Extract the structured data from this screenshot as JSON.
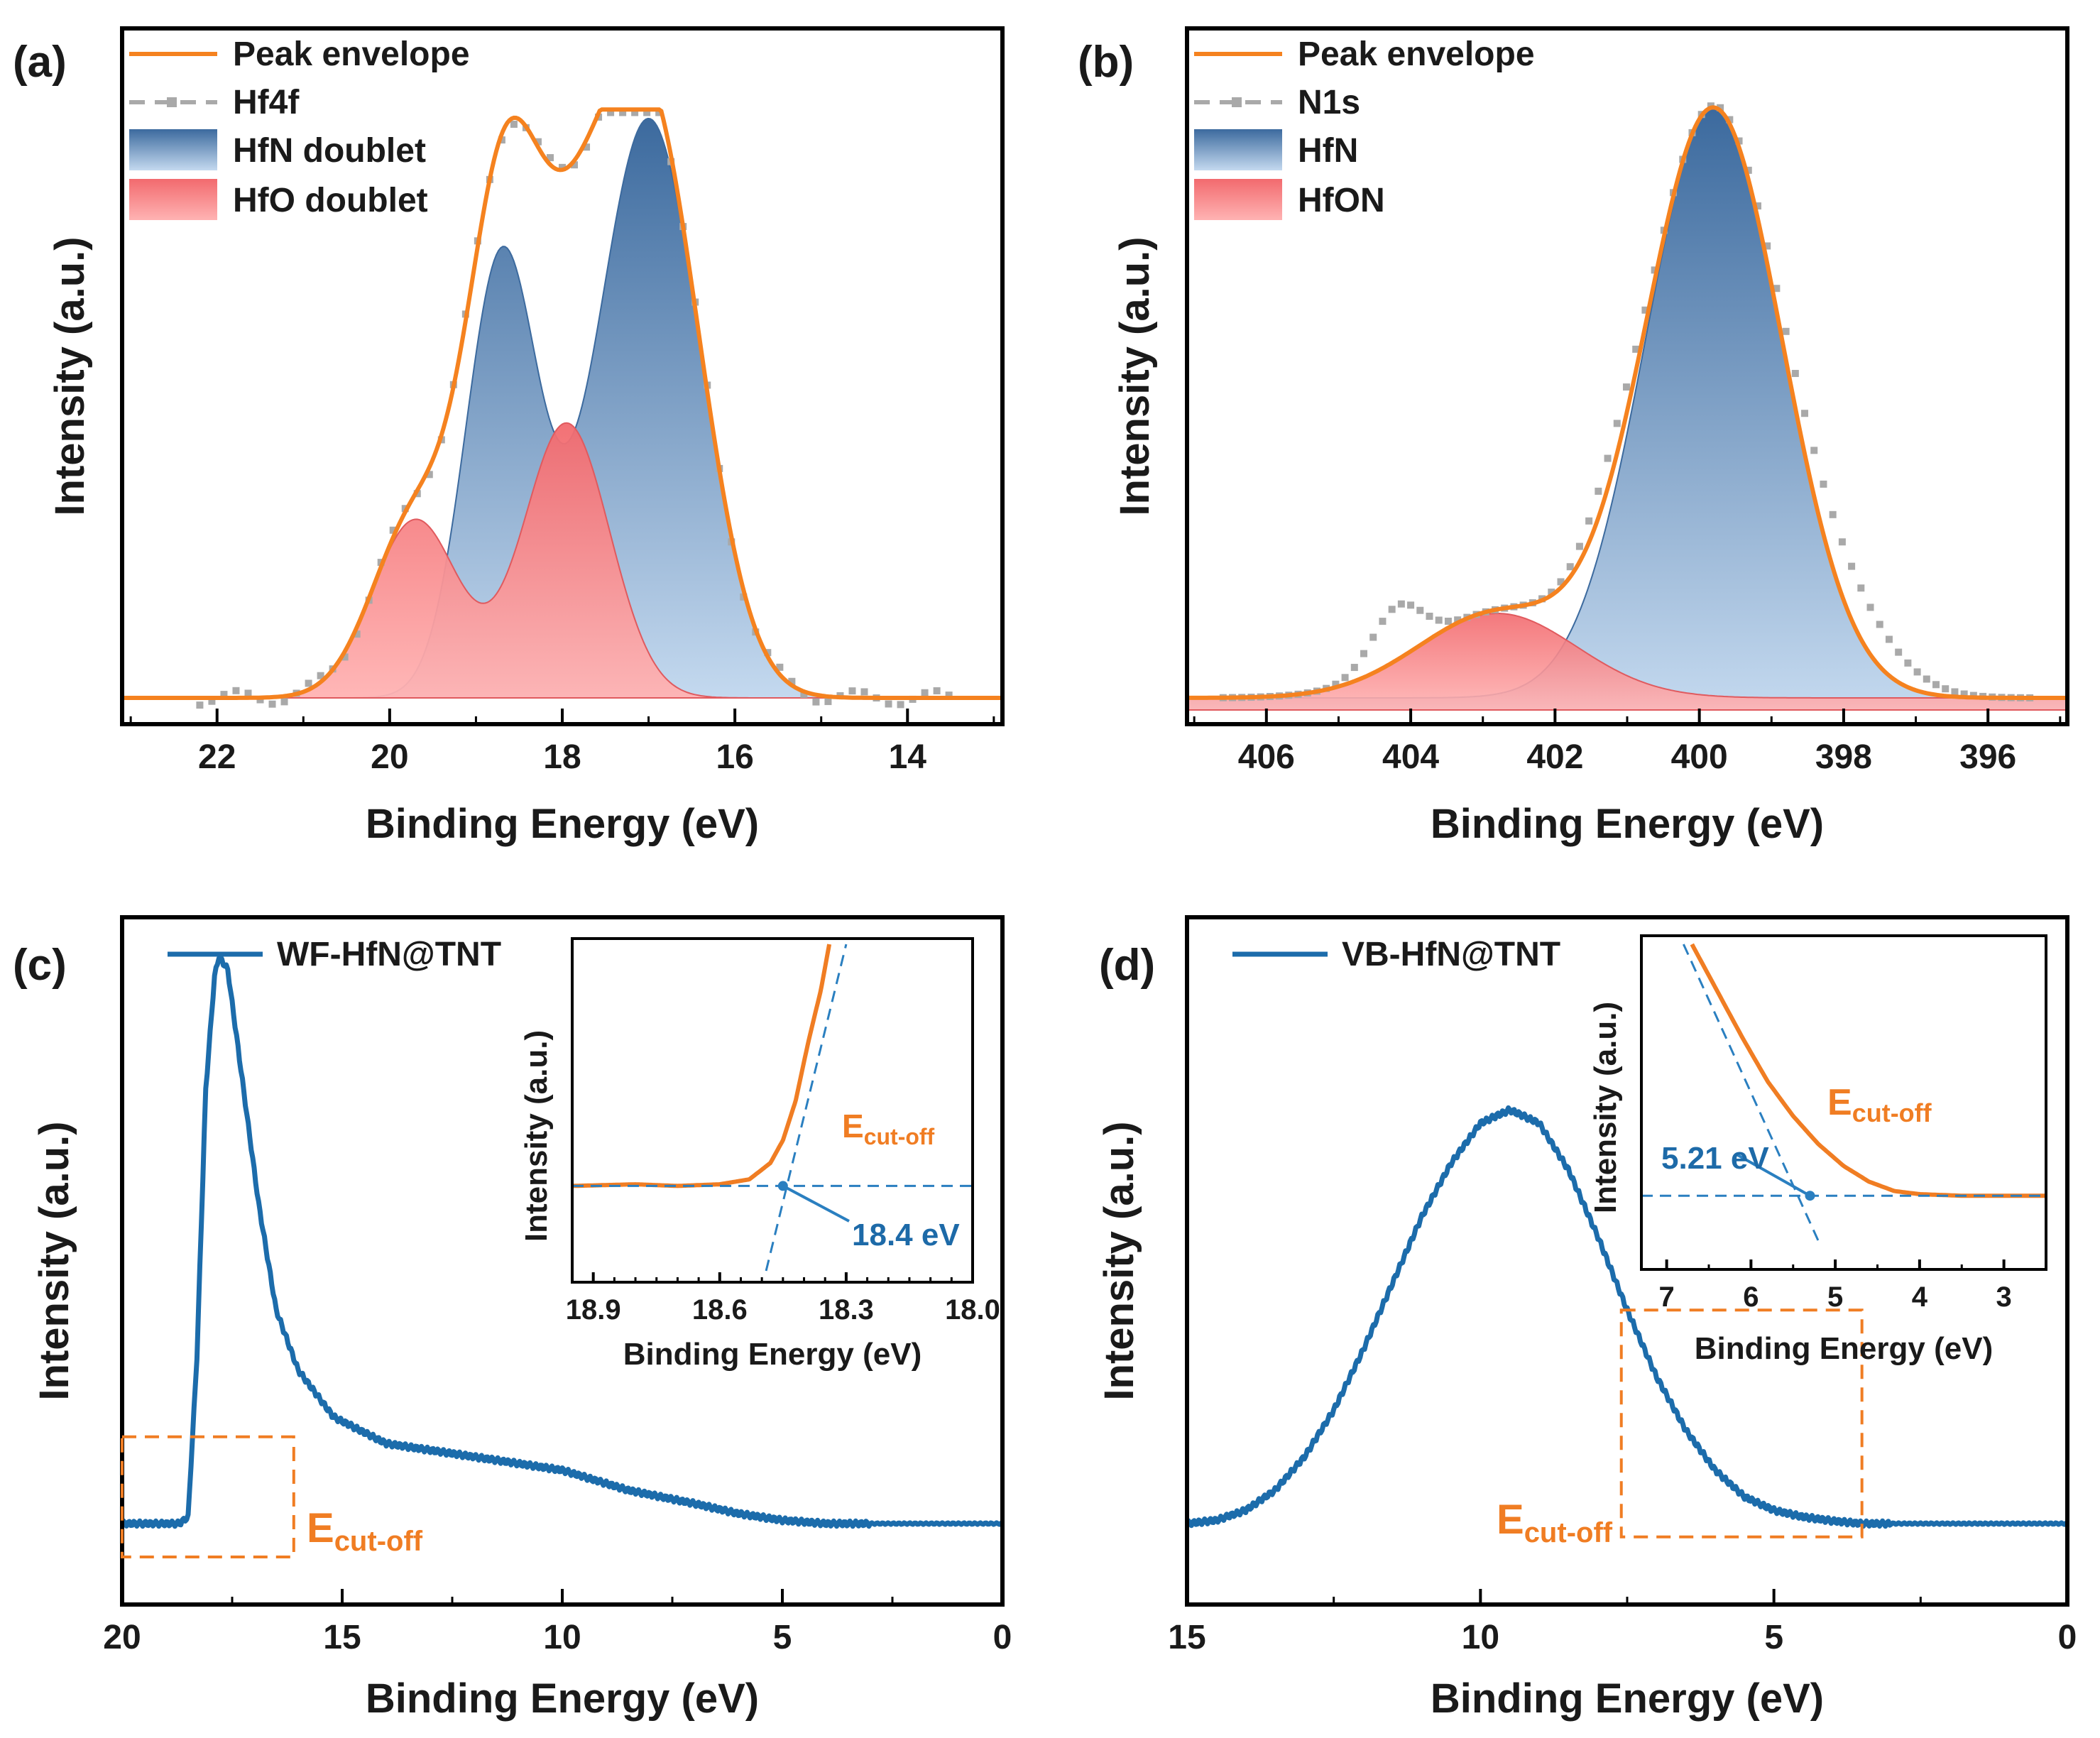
{
  "colors": {
    "envelope": "#f5821f",
    "raw": "#a9a9a9",
    "hfn_top": "#3c6a9e",
    "hfn_bottom": "#c4d9ef",
    "hfo_top": "#f26a6e",
    "hfo_bottom": "#ffb3b3",
    "wf_line": "#1c6cab",
    "annotation": "#f07d23",
    "dashed_blue": "#2a7fc0"
  },
  "chart_data": [
    {
      "id": "a",
      "panel_label": "(a)",
      "type": "area",
      "title": "",
      "xlabel": "Binding Energy (eV)",
      "ylabel": "Intensity (a.u.)",
      "xlim": [
        23.1,
        12.9
      ],
      "ylim": [
        0,
        1
      ],
      "x_ticks": [
        "22",
        "20",
        "18",
        "16",
        "14"
      ],
      "legend_position": "top-left",
      "legend": [
        "Peak envelope",
        "Hf4f",
        "HfN doublet",
        "HfO doublet"
      ],
      "series": [
        {
          "name": "HfN doublet",
          "kind": "gaussian-sum",
          "baseline": 0.02,
          "peaks": [
            {
              "center": 17.0,
              "height": 0.96,
              "sigma": 0.6
            },
            {
              "center": 18.7,
              "height": 0.73,
              "sigma": 0.42
            }
          ]
        },
        {
          "name": "HfO doublet",
          "kind": "gaussian-sum",
          "baseline": 0.02,
          "peaks": [
            {
              "center": 17.95,
              "height": 0.455,
              "sigma": 0.5
            },
            {
              "center": 19.7,
              "height": 0.295,
              "sigma": 0.5
            }
          ]
        }
      ]
    },
    {
      "id": "b",
      "panel_label": "(b)",
      "type": "area",
      "title": "",
      "xlabel": "Binding Energy (eV)",
      "ylabel": "Intensity (a.u.)",
      "xlim": [
        407.1,
        394.9
      ],
      "ylim": [
        0,
        1
      ],
      "x_ticks": [
        "406",
        "404",
        "402",
        "400",
        "398",
        "396"
      ],
      "legend_position": "top-left",
      "legend": [
        "Peak envelope",
        "N1s",
        "HfN",
        "HfON"
      ],
      "series": [
        {
          "name": "HfN",
          "kind": "gaussian-sum",
          "baseline": 0.02,
          "peaks": [
            {
              "center": 399.8,
              "height": 0.975,
              "sigma": 0.95
            }
          ]
        },
        {
          "name": "HfON",
          "kind": "gaussian-sum",
          "baseline": 0.02,
          "peaks": [
            {
              "center": 402.8,
              "height": 0.14,
              "sigma": 1.1
            }
          ]
        },
        {
          "name": "N1s extra",
          "kind": "raw-bumps",
          "peaks": [
            {
              "center": 404.2,
              "height": 0.09,
              "sigma": 0.35
            },
            {
              "center": 398.0,
              "height": 0.09,
              "sigma": 0.7
            },
            {
              "center": 401.2,
              "height": 0.05,
              "sigma": 0.4
            }
          ]
        }
      ]
    },
    {
      "id": "c",
      "panel_label": "(c)",
      "type": "line",
      "title": "",
      "xlabel": "Binding Energy (eV)",
      "ylabel": "Intensity (a.u.)",
      "xlim": [
        20,
        0
      ],
      "ylim": [
        0,
        1
      ],
      "x_ticks": [
        "20",
        "15",
        "10",
        "5",
        "0"
      ],
      "legend_position": "top-left",
      "legend": [
        "WF-HfN@TNT"
      ],
      "series": [
        {
          "name": "WF-HfN@TNT",
          "points": [
            [
              20,
              0.1
            ],
            [
              18.7,
              0.1
            ],
            [
              18.5,
              0.11
            ],
            [
              18.3,
              0.35
            ],
            [
              18.1,
              0.75
            ],
            [
              17.9,
              0.92
            ],
            [
              17.8,
              0.95
            ],
            [
              17.6,
              0.93
            ],
            [
              17.3,
              0.78
            ],
            [
              16.9,
              0.58
            ],
            [
              16.5,
              0.42
            ],
            [
              16,
              0.33
            ],
            [
              15.2,
              0.26
            ],
            [
              14,
              0.22
            ],
            [
              12,
              0.2
            ],
            [
              10,
              0.18
            ],
            [
              8.5,
              0.15
            ],
            [
              7,
              0.13
            ],
            [
              6,
              0.115
            ],
            [
              5,
              0.105
            ],
            [
              4,
              0.1
            ],
            [
              0,
              0.1
            ]
          ]
        }
      ],
      "highlight_box": {
        "x_range": [
          20,
          16.1
        ],
        "y_range": [
          0.05,
          0.23
        ],
        "label": "E",
        "label_sub": "cut-off"
      },
      "inset": {
        "xlabel": "Binding Energy (eV)",
        "ylabel": "Intensity (a.u.)",
        "xlim": [
          18.95,
          18.0
        ],
        "ylim": [
          0,
          1
        ],
        "x_ticks": [
          "18.9",
          "18.6",
          "18.3",
          "18.0"
        ],
        "series": [
          {
            "name": "inset",
            "points": [
              [
                18.95,
                0.26
              ],
              [
                18.8,
                0.265
              ],
              [
                18.7,
                0.26
              ],
              [
                18.6,
                0.265
              ],
              [
                18.53,
                0.28
              ],
              [
                18.48,
                0.33
              ],
              [
                18.45,
                0.4
              ],
              [
                18.42,
                0.52
              ],
              [
                18.39,
                0.7
              ],
              [
                18.36,
                0.86
              ],
              [
                18.34,
                1.0
              ]
            ]
          }
        ],
        "annotation": {
          "value": "18.4 eV",
          "label": "E",
          "label_sub": "cut-off"
        }
      }
    },
    {
      "id": "d",
      "panel_label": "(d)",
      "type": "line",
      "title": "",
      "xlabel": "Binding Energy (eV)",
      "ylabel": "Intensity (a.u.)",
      "xlim": [
        15,
        0
      ],
      "ylim": [
        0,
        1
      ],
      "x_ticks": [
        "15",
        "10",
        "5",
        "0"
      ],
      "legend_position": "top-left",
      "legend": [
        "VB-HfN@TNT"
      ],
      "series": [
        {
          "name": "VB-HfN@TNT",
          "points": [
            [
              15,
              0.1
            ],
            [
              14.5,
              0.105
            ],
            [
              14,
              0.12
            ],
            [
              13.5,
              0.15
            ],
            [
              13,
              0.2
            ],
            [
              12.5,
              0.27
            ],
            [
              12,
              0.36
            ],
            [
              11.5,
              0.46
            ],
            [
              11,
              0.56
            ],
            [
              10.5,
              0.64
            ],
            [
              10,
              0.7
            ],
            [
              9.5,
              0.72
            ],
            [
              9,
              0.7
            ],
            [
              8.5,
              0.63
            ],
            [
              8,
              0.53
            ],
            [
              7.5,
              0.42
            ],
            [
              7,
              0.32
            ],
            [
              6.5,
              0.24
            ],
            [
              6,
              0.18
            ],
            [
              5.5,
              0.14
            ],
            [
              5,
              0.12
            ],
            [
              4.5,
              0.11
            ],
            [
              4,
              0.104
            ],
            [
              3.5,
              0.1
            ],
            [
              0,
              0.1
            ]
          ]
        }
      ],
      "highlight_box": {
        "x_range": [
          7.6,
          3.5
        ],
        "y_range": [
          0.08,
          0.42
        ],
        "label": "E",
        "label_sub": "cut-off"
      },
      "inset": {
        "xlabel": "Binding Energy (eV)",
        "ylabel": "Intensity (a.u.)",
        "xlim": [
          7.3,
          2.5
        ],
        "ylim": [
          0,
          1
        ],
        "x_ticks": [
          "7",
          "6",
          "5",
          "4",
          "3"
        ],
        "series": [
          {
            "name": "inset",
            "points": [
              [
                6.7,
                1.0
              ],
              [
                6.4,
                0.85
              ],
              [
                6.1,
                0.7
              ],
              [
                5.8,
                0.56
              ],
              [
                5.5,
                0.45
              ],
              [
                5.2,
                0.36
              ],
              [
                4.9,
                0.29
              ],
              [
                4.6,
                0.24
              ],
              [
                4.3,
                0.21
              ],
              [
                4.0,
                0.2
              ],
              [
                3.5,
                0.195
              ],
              [
                2.5,
                0.195
              ]
            ]
          }
        ],
        "annotation": {
          "value": "5.21 eV",
          "label": "E",
          "label_sub": "cut-off"
        }
      }
    }
  ]
}
